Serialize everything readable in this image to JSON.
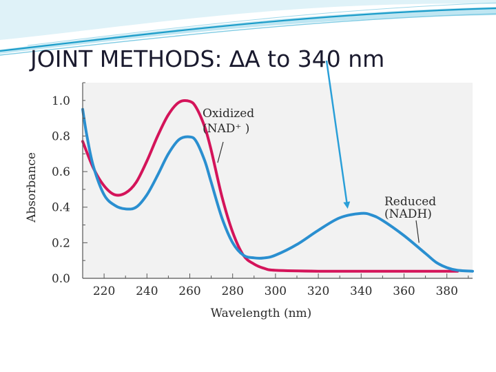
{
  "slide": {
    "title": "JOINT METHODS: ∆A to 340 nm"
  },
  "colors": {
    "oxidized": "#d4145a",
    "reduced": "#2a8fd0",
    "arrow": "#2a9fd8",
    "plot_bg": "#f2f2f2",
    "deco_dark": "#1b9cc9",
    "deco_light": "#bfe6f2"
  },
  "chart_data": {
    "type": "line",
    "title": "",
    "xlabel": "Wavelength (nm)",
    "ylabel": "Absorbance",
    "xlim": [
      210,
      392
    ],
    "ylim": [
      0,
      1.1
    ],
    "xticks": [
      220,
      240,
      260,
      280,
      300,
      320,
      340,
      360,
      380
    ],
    "yticks": [
      0.0,
      0.2,
      0.4,
      0.6,
      0.8,
      1.0
    ],
    "ytick_labels": [
      "0.0",
      "0.2",
      "0.4",
      "0.6",
      "0.8",
      "1.0"
    ],
    "grid": false,
    "series": [
      {
        "name": "Oxidized (NAD+)",
        "color_key": "oxidized",
        "points": [
          [
            210,
            0.77
          ],
          [
            215,
            0.62
          ],
          [
            220,
            0.52
          ],
          [
            225,
            0.47
          ],
          [
            230,
            0.48
          ],
          [
            235,
            0.54
          ],
          [
            240,
            0.66
          ],
          [
            245,
            0.8
          ],
          [
            250,
            0.92
          ],
          [
            255,
            0.99
          ],
          [
            260,
            0.995
          ],
          [
            263,
            0.96
          ],
          [
            267,
            0.85
          ],
          [
            270,
            0.72
          ],
          [
            275,
            0.46
          ],
          [
            280,
            0.26
          ],
          [
            285,
            0.13
          ],
          [
            290,
            0.08
          ],
          [
            295,
            0.055
          ],
          [
            300,
            0.045
          ],
          [
            320,
            0.04
          ],
          [
            340,
            0.04
          ],
          [
            360,
            0.04
          ],
          [
            380,
            0.04
          ],
          [
            385,
            0.04
          ]
        ]
      },
      {
        "name": "Reduced (NADH)",
        "color_key": "reduced",
        "points": [
          [
            210,
            0.95
          ],
          [
            212,
            0.8
          ],
          [
            215,
            0.63
          ],
          [
            220,
            0.47
          ],
          [
            225,
            0.41
          ],
          [
            230,
            0.39
          ],
          [
            235,
            0.4
          ],
          [
            240,
            0.47
          ],
          [
            245,
            0.58
          ],
          [
            250,
            0.7
          ],
          [
            255,
            0.78
          ],
          [
            260,
            0.795
          ],
          [
            263,
            0.77
          ],
          [
            267,
            0.66
          ],
          [
            270,
            0.54
          ],
          [
            275,
            0.34
          ],
          [
            280,
            0.2
          ],
          [
            285,
            0.13
          ],
          [
            290,
            0.115
          ],
          [
            295,
            0.115
          ],
          [
            300,
            0.13
          ],
          [
            310,
            0.19
          ],
          [
            320,
            0.27
          ],
          [
            330,
            0.34
          ],
          [
            340,
            0.365
          ],
          [
            345,
            0.355
          ],
          [
            350,
            0.325
          ],
          [
            360,
            0.24
          ],
          [
            370,
            0.14
          ],
          [
            375,
            0.09
          ],
          [
            380,
            0.06
          ],
          [
            385,
            0.045
          ],
          [
            392,
            0.04
          ]
        ]
      }
    ],
    "annotations": [
      {
        "name": "oxidized",
        "lines": [
          "Oxidized",
          "(NAD⁺ )"
        ],
        "points_to": [
          273,
          0.65
        ]
      },
      {
        "name": "reduced",
        "lines": [
          "Reduced",
          "(NADH)"
        ],
        "points_to": [
          367,
          0.2
        ]
      }
    ],
    "highlight_arrow": {
      "target": [
        340,
        0.38
      ],
      "label": "340 nm"
    }
  }
}
